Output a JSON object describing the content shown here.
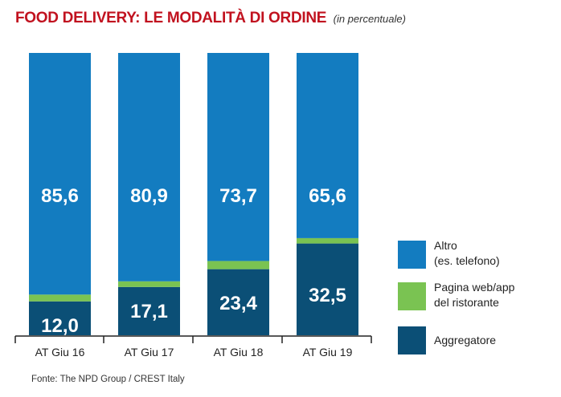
{
  "title": "FOOD DELIVERY: LE MODALITÀ DI ORDINE",
  "subtitle": "(in percentuale)",
  "source": "Fonte: The NPD Group / CREST Italy",
  "colors": {
    "altro": "#137cc0",
    "pagina": "#7ac352",
    "aggregatore": "#0b4f76",
    "title": "#c1121f"
  },
  "chart_data": {
    "type": "bar",
    "stacked": true,
    "title": "FOOD DELIVERY: LE MODALITÀ DI ORDINE (in percentuale)",
    "xlabel": "",
    "ylabel": "",
    "ylim": [
      0,
      100
    ],
    "grid": false,
    "legend_position": "right",
    "categories": [
      "AT Giu 16",
      "AT Giu 17",
      "AT Giu 18",
      "AT Giu 19"
    ],
    "series": [
      {
        "name": "Aggregatore",
        "color": "#0b4f76",
        "values": [
          12.0,
          17.1,
          23.4,
          32.5
        ],
        "labels": [
          "12,0",
          "17,1",
          "23,4",
          "32,5"
        ]
      },
      {
        "name": "Pagina web/app del ristorante",
        "color": "#7ac352",
        "values": [
          2.4,
          2.0,
          2.9,
          1.9
        ],
        "labels": [
          "",
          "",
          "",
          ""
        ]
      },
      {
        "name": "Altro (es. telefono)",
        "color": "#137cc0",
        "values": [
          85.6,
          80.9,
          73.7,
          65.6
        ],
        "labels": [
          "85,6",
          "80,9",
          "73,7",
          "65,6"
        ]
      }
    ]
  },
  "legend": [
    {
      "label": "Altro\n(es. telefono)",
      "color": "#137cc0"
    },
    {
      "label": "Pagina web/app\ndel ristorante",
      "color": "#7ac352"
    },
    {
      "label": "Aggregatore",
      "color": "#0b4f76"
    }
  ]
}
